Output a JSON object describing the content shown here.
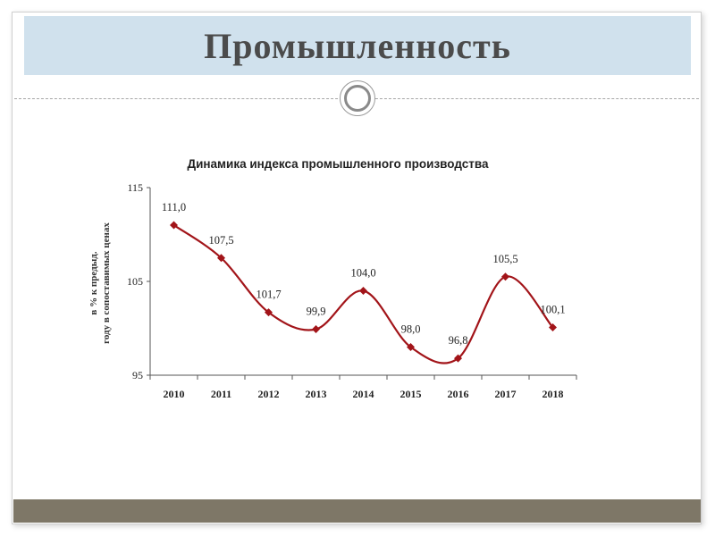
{
  "slide": {
    "title": "Промышленность"
  },
  "colors": {
    "title_band": "#d0e1ed",
    "series_line": "#a21419",
    "footer_bar": "#7e7767"
  },
  "chart_data": {
    "type": "line",
    "title": "Динамика индекса промышленного производства",
    "ylabel_lines": [
      "в % к предыд.",
      "году в сопоставимых ценах"
    ],
    "categories": [
      "2010",
      "2011",
      "2012",
      "2013",
      "2014",
      "2015",
      "2016",
      "2017",
      "2018"
    ],
    "values": [
      111.0,
      107.5,
      101.7,
      99.9,
      104.0,
      98.0,
      96.8,
      105.5,
      100.1
    ],
    "value_labels": [
      "111,0",
      "107,5",
      "101,7",
      "99,9",
      "104,0",
      "98,0",
      "96,8",
      "105,5",
      "100,1"
    ],
    "yticks": [
      "115",
      "105",
      "95"
    ],
    "ylim": [
      95,
      115
    ],
    "grid": false,
    "legend": false
  }
}
